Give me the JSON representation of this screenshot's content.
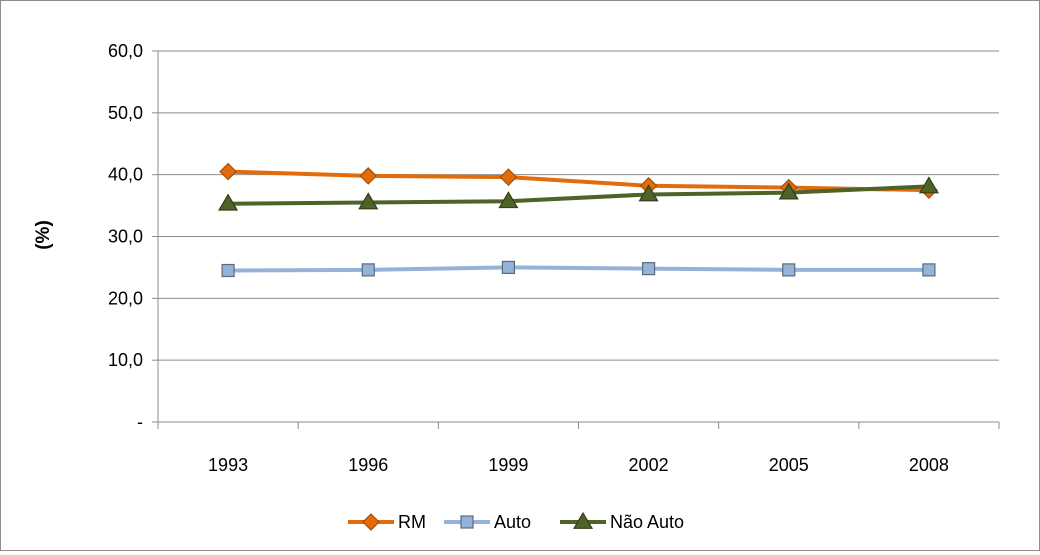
{
  "chart_data": {
    "type": "line",
    "title": "",
    "xlabel": "",
    "ylabel": "(%)",
    "categories": [
      "1993",
      "1996",
      "1999",
      "2002",
      "2005",
      "2008"
    ],
    "ylim": [
      0,
      60
    ],
    "yticks": [
      {
        "value": 0,
        "label": "-"
      },
      {
        "value": 10,
        "label": "10,0"
      },
      {
        "value": 20,
        "label": "20,0"
      },
      {
        "value": 30,
        "label": "30,0"
      },
      {
        "value": 40,
        "label": "40,0"
      },
      {
        "value": 50,
        "label": "50,0"
      },
      {
        "value": 60,
        "label": "60,0"
      }
    ],
    "grid": true,
    "legend_position": "bottom",
    "series": [
      {
        "name": "RM",
        "marker": "diamond",
        "color": "#e36c0a",
        "values": [
          40.5,
          39.8,
          39.6,
          38.2,
          37.9,
          37.5
        ]
      },
      {
        "name": "Auto",
        "marker": "square",
        "color": "#95b3d7",
        "values": [
          24.5,
          24.6,
          25.0,
          24.8,
          24.6,
          24.6
        ]
      },
      {
        "name": "Não Auto",
        "marker": "triangle",
        "color": "#4f6228",
        "values": [
          35.3,
          35.5,
          35.7,
          36.8,
          37.1,
          38.1
        ]
      }
    ]
  }
}
